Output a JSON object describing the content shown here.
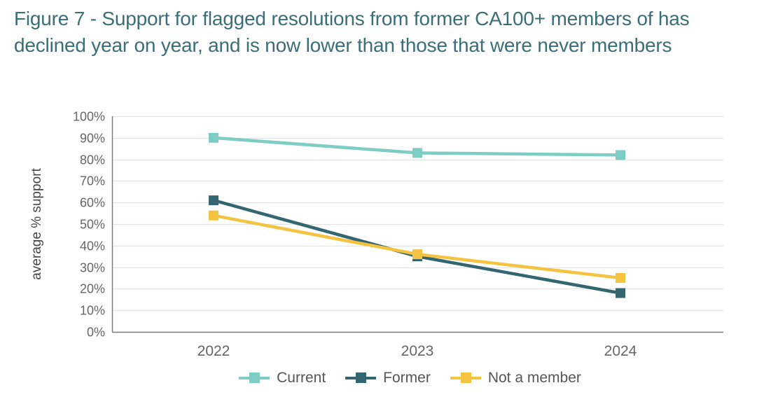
{
  "title": {
    "line1": "Figure 7 - Support for flagged resolutions from former CA100+ members of has",
    "line2": "declined year on year, and is now lower than those that were never members"
  },
  "chart_data": {
    "type": "line",
    "title": "Figure 7 - Support for flagged resolutions from former CA100+ members of has declined year on year, and is now lower than those that were never members",
    "xlabel": "",
    "ylabel": "average % support",
    "categories": [
      "2022",
      "2023",
      "2024"
    ],
    "ylim": [
      0,
      100
    ],
    "yticks": [
      0,
      10,
      20,
      30,
      40,
      50,
      60,
      70,
      80,
      90,
      100
    ],
    "ytick_labels": [
      "0%",
      "10%",
      "20%",
      "30%",
      "40%",
      "50%",
      "60%",
      "70%",
      "80%",
      "90%",
      "100%"
    ],
    "grid": true,
    "legend_position": "bottom",
    "series": [
      {
        "name": "Current",
        "color": "#7ecdc4",
        "values": [
          90,
          83,
          82
        ]
      },
      {
        "name": "Former",
        "color": "#336671",
        "values": [
          61,
          35,
          18
        ]
      },
      {
        "name": "Not a member",
        "color": "#f5c342",
        "values": [
          54,
          36,
          25
        ]
      }
    ]
  }
}
